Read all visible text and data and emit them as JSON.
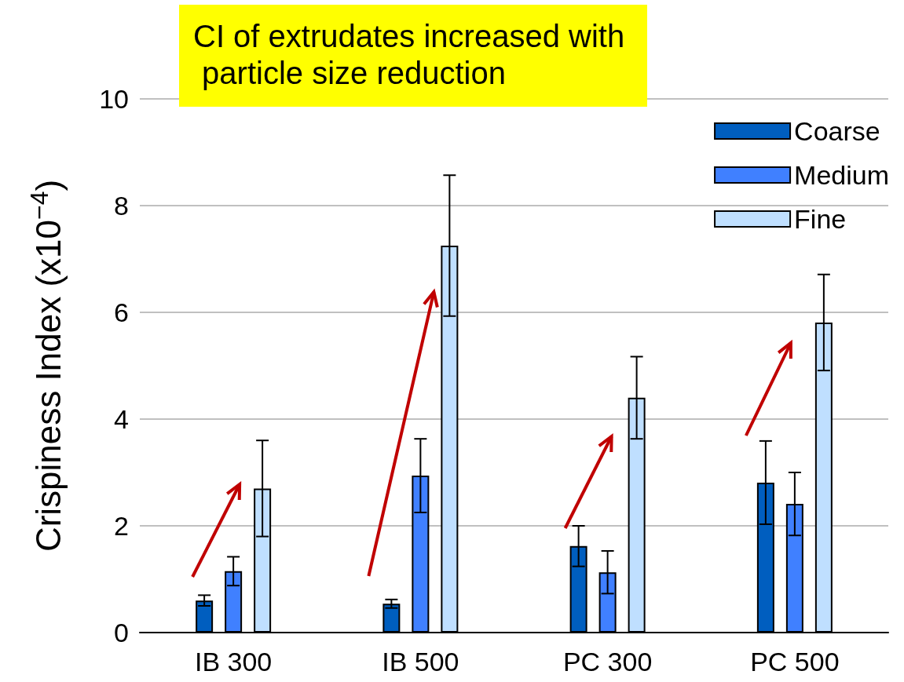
{
  "chart_data": {
    "type": "bar",
    "ylabel": "Crispiness Index (x10$^{−4}$)",
    "annotations": [
      "CI of extrudates increased with particle size reduction"
    ],
    "categories": [
      "IB 300",
      "IB 500",
      "PC 300",
      "PC 500"
    ],
    "series": [
      {
        "name": "Coarse",
        "color": "#005ebf",
        "values": [
          0.6,
          0.54,
          1.62,
          2.81
        ],
        "errors": [
          0.1,
          0.08,
          0.38,
          0.78
        ]
      },
      {
        "name": "Medium",
        "color": "#4080ff",
        "values": [
          1.15,
          2.94,
          1.13,
          2.41
        ],
        "errors": [
          0.27,
          0.69,
          0.4,
          0.59
        ]
      },
      {
        "name": "Fine",
        "color": "#bfdfff",
        "values": [
          2.7,
          7.25,
          4.4,
          5.81
        ],
        "errors": [
          0.9,
          1.32,
          0.77,
          0.9
        ]
      }
    ],
    "ylim": [
      0,
      10
    ],
    "yticks": [
      0,
      2,
      4,
      6,
      8,
      10
    ],
    "grid": "y",
    "legend": "top right"
  }
}
